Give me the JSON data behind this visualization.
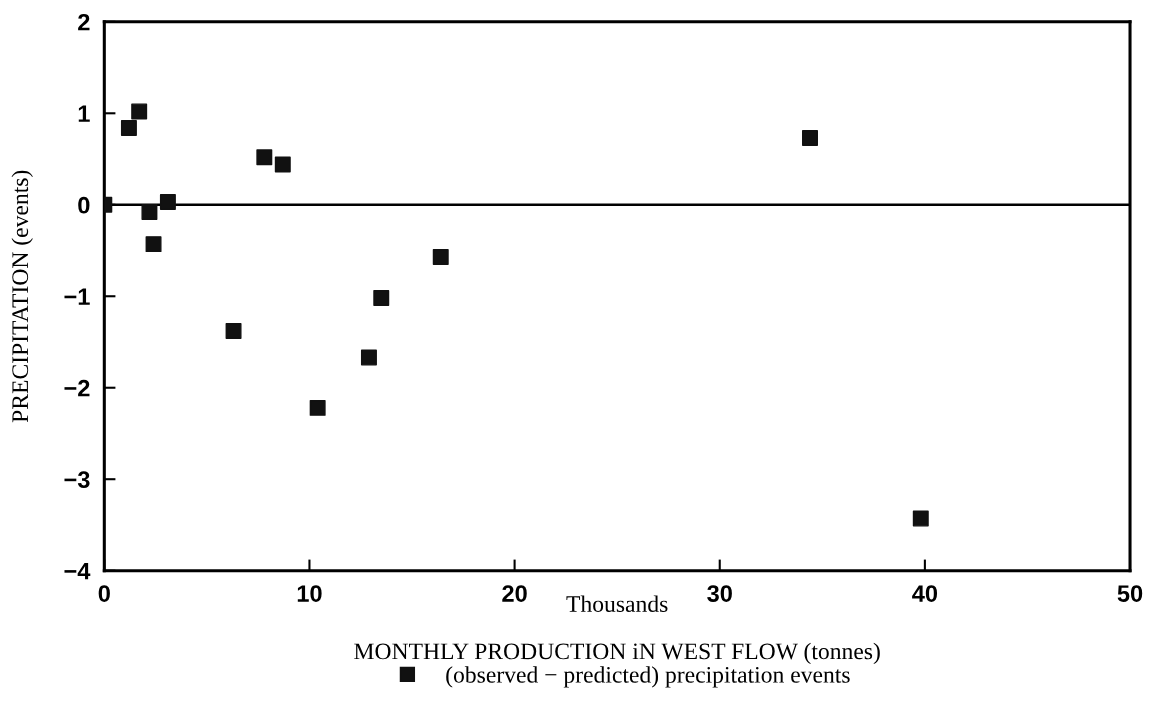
{
  "chart_data": {
    "type": "scatter",
    "xlabel": "MONTHLY PRODUCTION iN WEST FLOW (tonnes)",
    "ylabel": "PRECIPITATION (events)",
    "annotations": [
      "Thousands"
    ],
    "series": [
      {
        "name": "(observed − predicted) precipitation events",
        "color": "#111111",
        "x": [
          0,
          1.2,
          1.7,
          2.2,
          3.1,
          2.4,
          7.8,
          8.7,
          6.3,
          10.4,
          12.9,
          13.5,
          16.4,
          34.4,
          39.8
        ],
        "values": [
          0,
          0.84,
          1.02,
          -0.08,
          0.03,
          -0.43,
          0.52,
          0.44,
          -1.38,
          -2.22,
          -1.67,
          -1.02,
          -0.57,
          0.73,
          -3.43
        ]
      }
    ],
    "marker": "square",
    "xlim": [
      0,
      50
    ],
    "xticks": [
      0,
      10,
      20,
      30,
      40,
      50
    ],
    "ylim": [
      -4,
      2
    ],
    "yticks": [
      -4,
      -3,
      -2,
      -1,
      0,
      1,
      2
    ],
    "ref_lines": [
      {
        "axis": "y",
        "value": 0,
        "color": "#000000",
        "line_style": "solid"
      }
    ],
    "grid": false,
    "legend": "bottom"
  }
}
